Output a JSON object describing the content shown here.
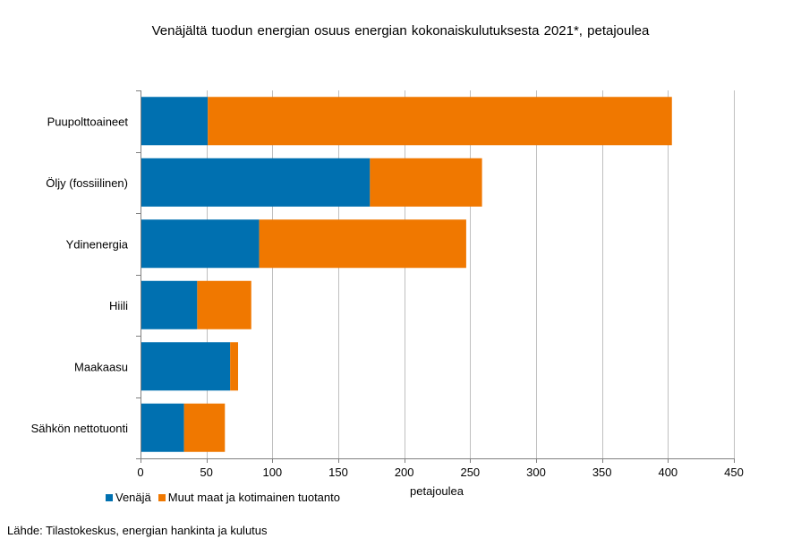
{
  "chart_data": {
    "type": "bar",
    "orientation": "horizontal",
    "stacked": true,
    "title": "Venäjältä tuodun energian osuus energian kokonaiskulutuksesta  2021*, petajoulea",
    "xlabel": "petajoulea",
    "ylabel": "",
    "categories": [
      "Puupolttoaineet",
      "Öljy (fossiilinen)",
      "Ydinenergia",
      "Hiili",
      "Maakaasu",
      "Sähkön nettotuonti"
    ],
    "series": [
      {
        "name": "Venäjä",
        "color": "#0070B0",
        "values": [
          51,
          174,
          90,
          43,
          68,
          33
        ]
      },
      {
        "name": "Muut maat ja kotimainen tuotanto",
        "color": "#F07800",
        "values": [
          352,
          85,
          157,
          41,
          6,
          31
        ]
      }
    ],
    "xlim": [
      0,
      450
    ],
    "xticks": [
      0,
      50,
      100,
      150,
      200,
      250,
      300,
      350,
      400,
      450
    ],
    "grid": true,
    "legend_position": "bottom-left"
  },
  "source": "Lähde: Tilastokeskus, energian hankinta ja kulutus"
}
